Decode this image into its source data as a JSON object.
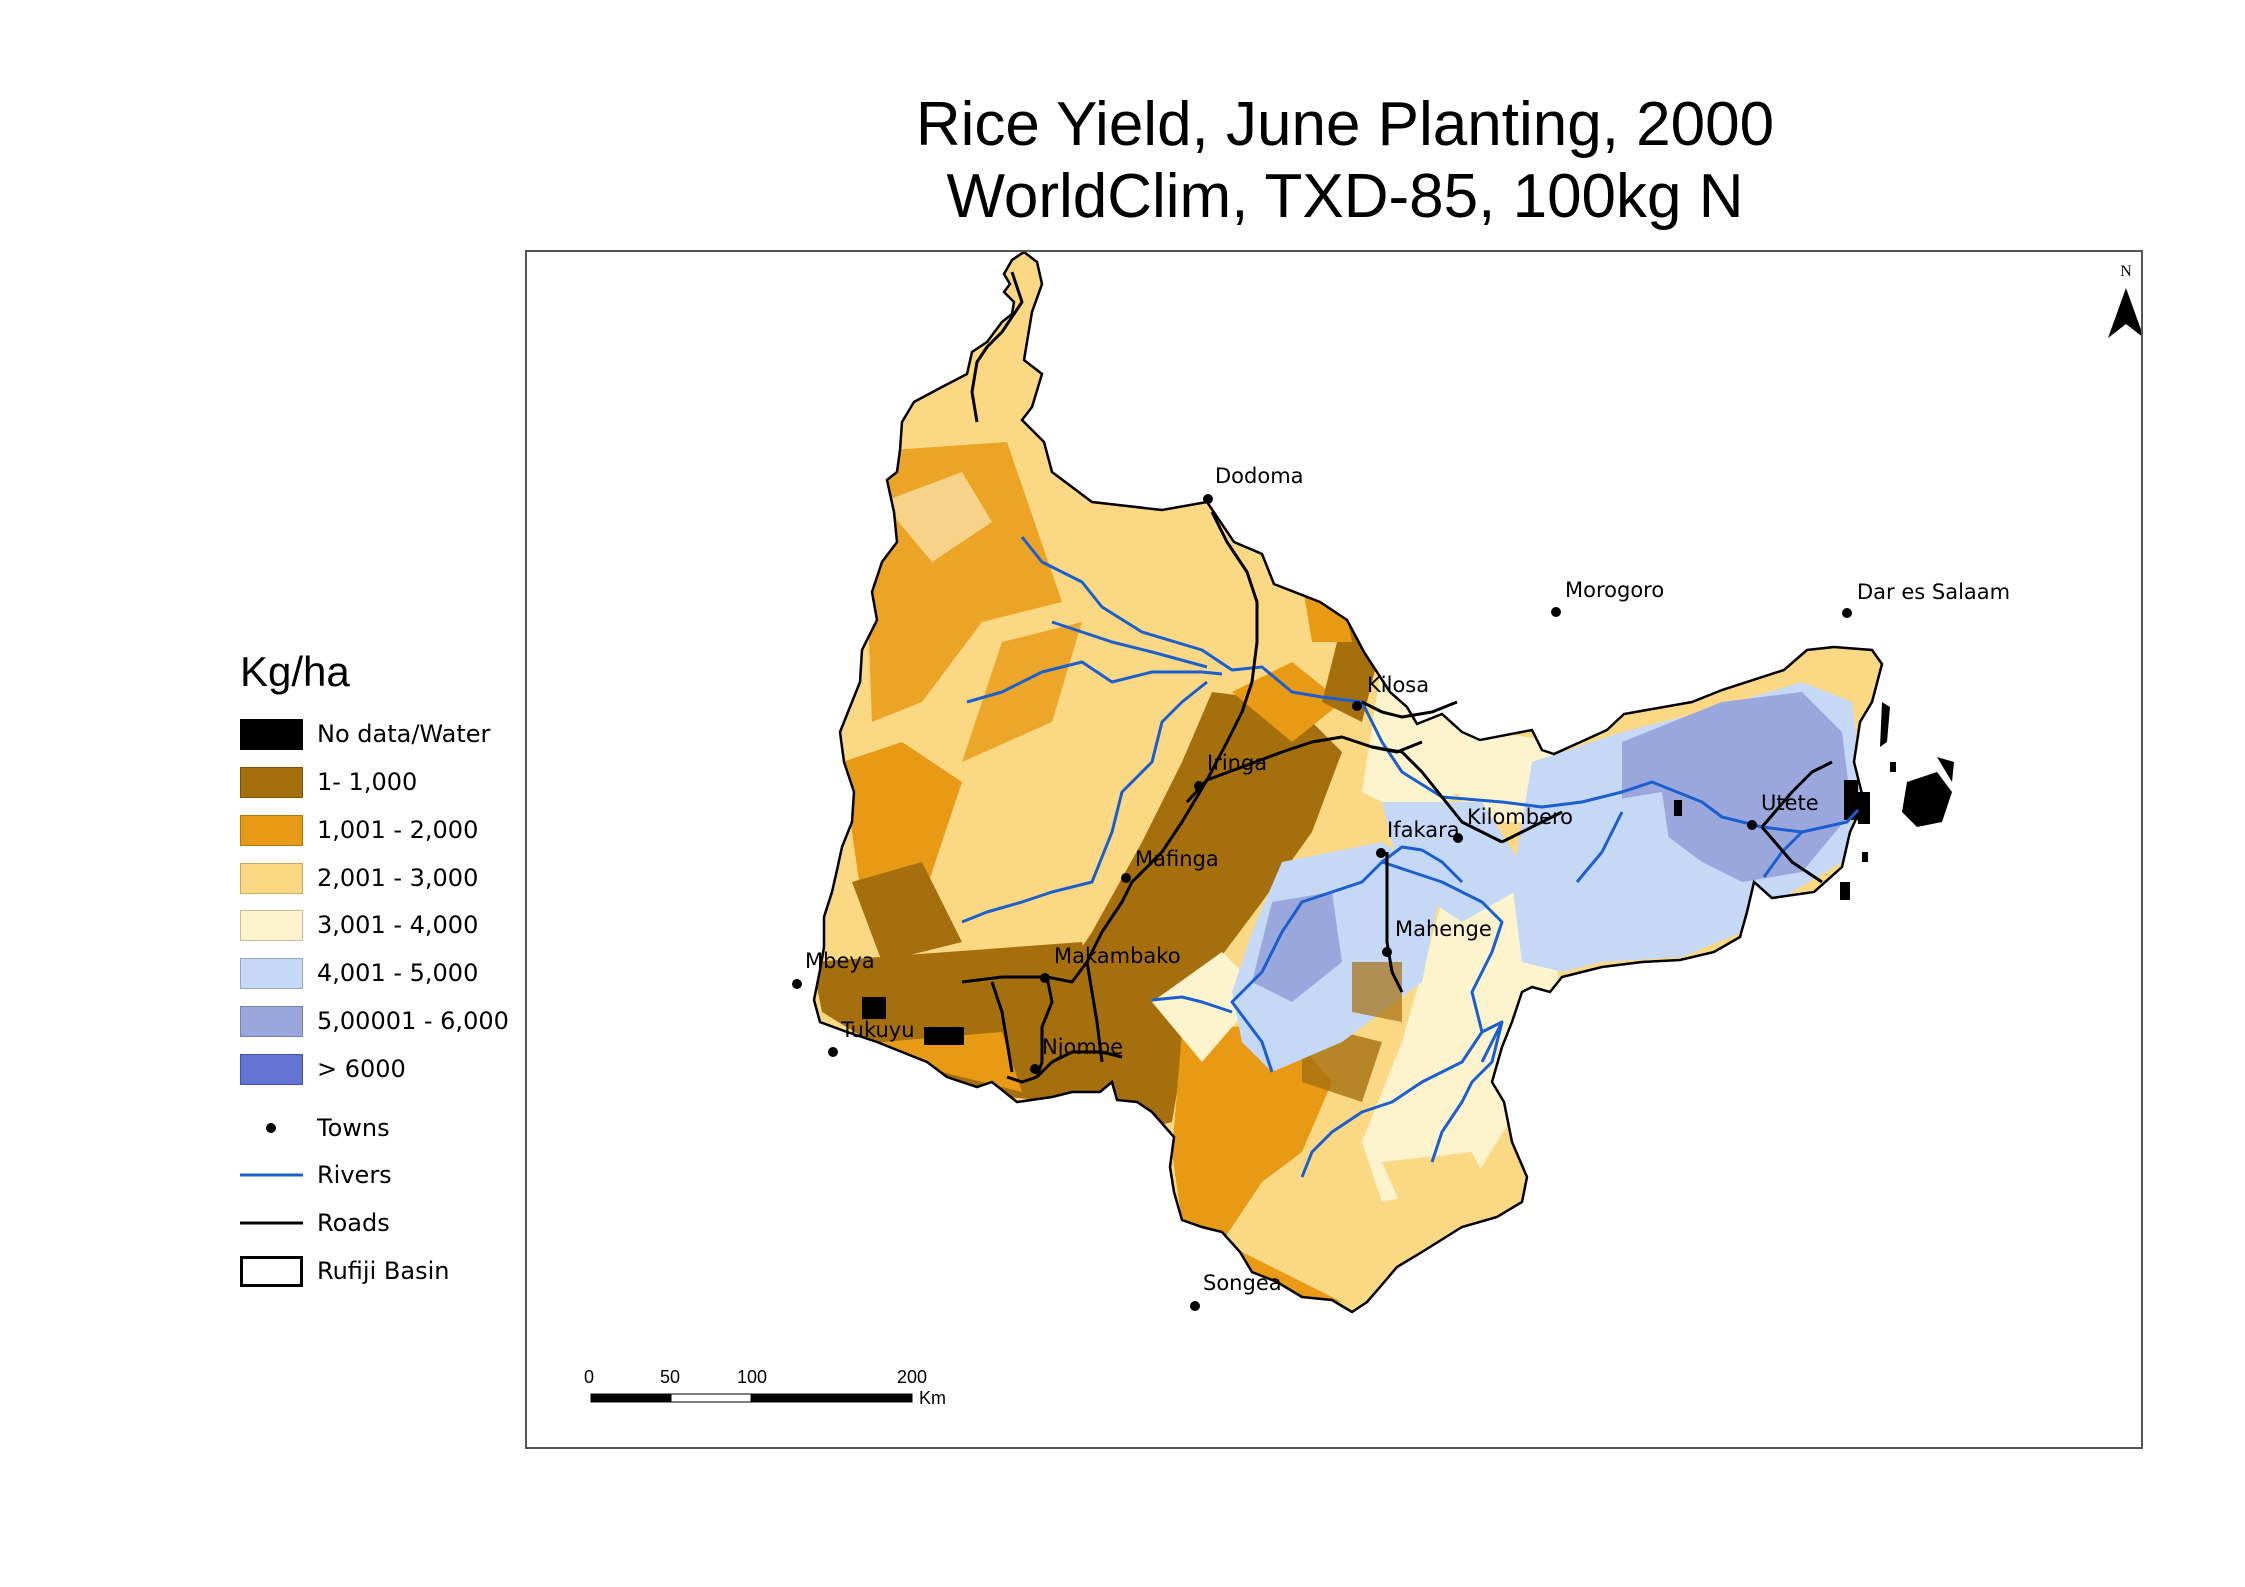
{
  "title": {
    "line1": "Rice Yield, June Planting, 2000",
    "line2": "WorldClim, TXD-85, 100kg N"
  },
  "north_arrow": {
    "label": "N"
  },
  "legend": {
    "title": "Kg/ha",
    "classes": [
      {
        "label": "No data/Water",
        "color": "#000000"
      },
      {
        "label": "1- 1,000",
        "color": "#a56f0e"
      },
      {
        "label": "1,001 - 2,000",
        "color": "#e89a14"
      },
      {
        "label": "2,001 - 3,000",
        "color": "#fbd984"
      },
      {
        "label": "3,001 - 4,000",
        "color": "#fdf3cd"
      },
      {
        "label": "4,001 - 5,000",
        "color": "#c5d8f5"
      },
      {
        "label": "5,00001 - 6,000",
        "color": "#9aa7dd"
      },
      {
        "label": "> 6000",
        "color": "#6573d3"
      }
    ],
    "symbols": [
      {
        "label": "Towns",
        "icon": "dot-icon"
      },
      {
        "label": "Rivers",
        "icon": "river-line-icon",
        "color": "#1a5fd0"
      },
      {
        "label": "Roads",
        "icon": "road-line-icon",
        "color": "#000000"
      },
      {
        "label": "Rufiji Basin",
        "icon": "basin-outline-icon"
      }
    ]
  },
  "towns": [
    {
      "name": "Dodoma"
    },
    {
      "name": "Morogoro"
    },
    {
      "name": "Dar es Salaam"
    },
    {
      "name": "Kilosa"
    },
    {
      "name": "Iringa"
    },
    {
      "name": "Utete"
    },
    {
      "name": "Ifakara"
    },
    {
      "name": "Kilombero"
    },
    {
      "name": "Mafinga"
    },
    {
      "name": "Mahenge"
    },
    {
      "name": "Makambako"
    },
    {
      "name": "Mbeya"
    },
    {
      "name": "Tukuyu"
    },
    {
      "name": "Njombe"
    },
    {
      "name": "Songea"
    }
  ],
  "scale_bar": {
    "ticks": [
      "0",
      "50",
      "100",
      "200"
    ],
    "unit": "Km"
  }
}
